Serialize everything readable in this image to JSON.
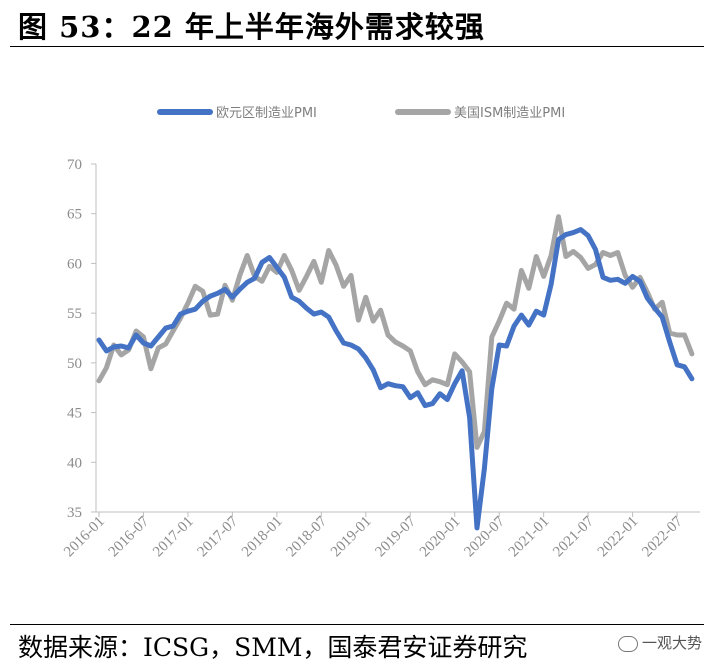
{
  "title": "图 53：22 年上半年海外需求较强",
  "source": "数据来源：ICSG，SMM，国泰君安证券研究",
  "watermark": "一观大势",
  "chart_data": {
    "type": "line",
    "title": "",
    "xlabel": "",
    "ylabel": "",
    "ylim": [
      35,
      70
    ],
    "yticks": [
      35,
      40,
      45,
      50,
      55,
      60,
      65,
      70
    ],
    "start_month": "2016-01",
    "xtick_labels": [
      "2016-01",
      "2016-07",
      "2017-01",
      "2017-07",
      "2018-01",
      "2018-07",
      "2019-01",
      "2019-07",
      "2020-01",
      "2020-07",
      "2021-01",
      "2021-07",
      "2022-01",
      "2022-07"
    ],
    "grid": false,
    "legend_position": "top",
    "series": [
      {
        "name": "欧元区制造业PMI",
        "color": "#4472c4",
        "values": [
          52.3,
          51.2,
          51.6,
          51.7,
          51.5,
          52.8,
          52.0,
          51.7,
          52.6,
          53.5,
          53.7,
          54.9,
          55.2,
          55.4,
          56.2,
          56.7,
          57.0,
          57.4,
          56.6,
          57.4,
          58.1,
          58.5,
          60.1,
          60.6,
          59.6,
          58.6,
          56.6,
          56.2,
          55.5,
          54.9,
          55.1,
          54.6,
          53.2,
          52.0,
          51.8,
          51.4,
          50.5,
          49.3,
          47.5,
          47.9,
          47.7,
          47.6,
          46.5,
          47.0,
          45.7,
          45.9,
          46.9,
          46.3,
          47.9,
          49.2,
          44.5,
          33.4,
          39.4,
          47.4,
          51.8,
          51.7,
          53.7,
          54.8,
          53.8,
          55.2,
          54.8,
          57.9,
          62.4,
          62.9,
          63.1,
          63.4,
          62.8,
          61.4,
          58.6,
          58.3,
          58.4,
          58.0,
          58.7,
          58.2,
          56.5,
          55.5,
          54.6,
          52.1,
          49.8,
          49.6,
          48.4
        ]
      },
      {
        "name": "美国ISM制造业PMI",
        "color": "#a5a5a5",
        "values": [
          48.2,
          49.5,
          51.8,
          50.8,
          51.3,
          53.2,
          52.6,
          49.4,
          51.5,
          51.9,
          53.2,
          54.5,
          56.0,
          57.7,
          57.2,
          54.8,
          54.9,
          57.8,
          56.3,
          58.8,
          60.8,
          58.7,
          58.2,
          59.7,
          59.1,
          60.8,
          59.3,
          57.3,
          58.7,
          60.2,
          58.1,
          61.3,
          59.8,
          57.7,
          58.8,
          54.3,
          56.6,
          54.2,
          55.3,
          52.8,
          52.1,
          51.7,
          51.2,
          49.1,
          47.8,
          48.3,
          48.1,
          47.8,
          50.9,
          50.1,
          49.1,
          41.5,
          43.1,
          52.6,
          54.2,
          56.0,
          55.4,
          59.3,
          57.5,
          60.7,
          58.7,
          60.8,
          64.7,
          60.7,
          61.2,
          60.6,
          59.5,
          59.9,
          61.1,
          60.8,
          61.1,
          58.8,
          57.6,
          58.6,
          57.1,
          55.4,
          56.1,
          53.0,
          52.8,
          52.8,
          50.9
        ]
      }
    ]
  }
}
